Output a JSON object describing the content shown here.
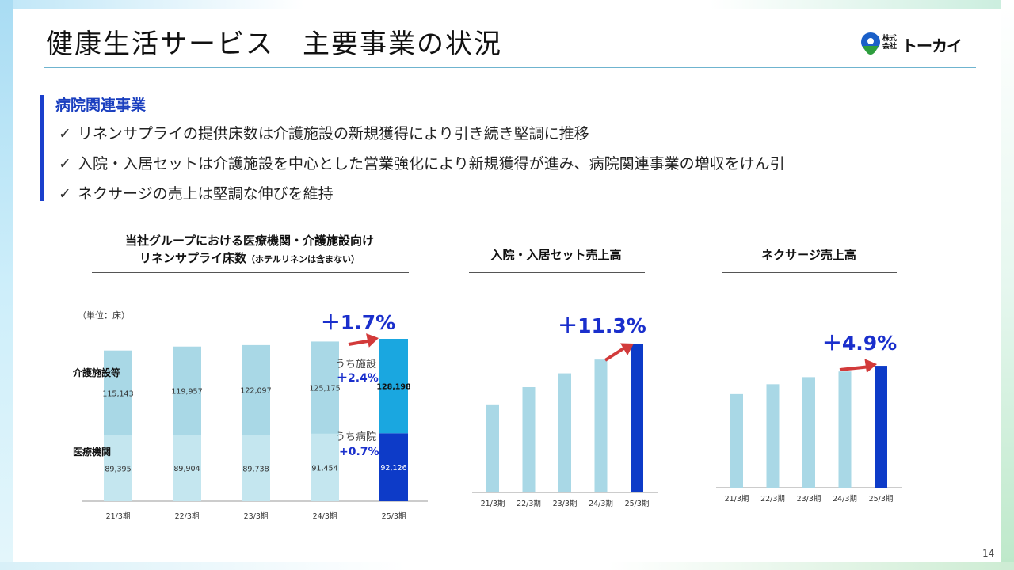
{
  "page": {
    "title": "健康生活サービス　主要事業の状況",
    "page_number": "14"
  },
  "logo": {
    "small_text": "株式会社",
    "main_text": "トーカイ",
    "colors": {
      "blue": "#1a5fc8",
      "green": "#2e9e3e"
    }
  },
  "section": {
    "heading": "病院関連事業",
    "check_icon": "✓",
    "bullets": [
      "リネンサプライの提供床数は介護施設の新規獲得により引き続き堅調に推移",
      "入院・入居セットは介護施設を中心とした営業強化により新規獲得が進み、病院関連事業の増収をけん引",
      "ネクサージの売上は堅調な伸びを維持"
    ]
  },
  "colors": {
    "accent_blue": "#1a3fcc",
    "growth_text": "#1a2fcc",
    "arrow_red": "#d23a3a",
    "bar_light": "#a9d8e6",
    "bar_lighter": "#c4e6ef",
    "bar_care_2025": "#1aa7e0",
    "bar_medical_2025": "#0d3bc8"
  },
  "chart_data": [
    {
      "type": "bar",
      "stacked": true,
      "title_line1": "当社グループにおける医療機関・介護施設向け",
      "title_line2": "リネンサプライ床数",
      "title_note": "（ホテルリネンは含まない）",
      "unit_label": "（単位：床）",
      "categories": [
        "21/3期",
        "22/3期",
        "23/3期",
        "24/3期",
        "25/3期"
      ],
      "series": [
        {
          "name": "医療機関",
          "values": [
            89395,
            89904,
            89738,
            91454,
            92126
          ],
          "labels": [
            "89,395",
            "89,904",
            "89,738",
            "91,454",
            "92,126"
          ]
        },
        {
          "name": "介護施設等",
          "values": [
            115143,
            119957,
            122097,
            125175,
            128198
          ],
          "labels": [
            "115,143",
            "119,957",
            "122,097",
            "125,175",
            "128,198"
          ]
        }
      ],
      "growth_total": "＋1.7%",
      "growth_care_label": "うち施設",
      "growth_care": "＋2.4%",
      "growth_medical_label": "うち病院",
      "growth_medical": "+0.7%"
    },
    {
      "type": "bar",
      "title": "入院・入居セット売上高",
      "categories": [
        "21/3期",
        "22/3期",
        "23/3期",
        "24/3期",
        "25/3期"
      ],
      "values": [
        0.51,
        0.61,
        0.69,
        0.77,
        0.86
      ],
      "value_scale": "relative (no axis values shown)",
      "growth": "＋11.3%"
    },
    {
      "type": "bar",
      "title": "ネクサージ売上高",
      "categories": [
        "21/3期",
        "22/3期",
        "23/3期",
        "24/3期",
        "25/3期"
      ],
      "values": [
        0.66,
        0.73,
        0.78,
        0.82,
        0.86
      ],
      "value_scale": "relative (no axis values shown)",
      "growth": "＋4.9%"
    }
  ]
}
